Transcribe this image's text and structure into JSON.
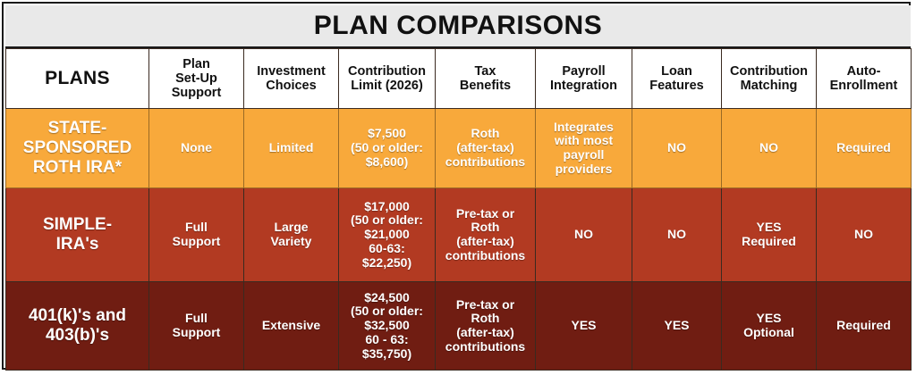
{
  "title": "PLAN COMPARISONS",
  "colors": {
    "row_state": "#f8a93b",
    "row_simple": "#b23a22",
    "row_401k": "#701d12",
    "title_bg": "#e9e9e9",
    "header_bg": "#ffffff"
  },
  "headers": [
    [
      "PLANS"
    ],
    [
      "Plan",
      "Set-Up",
      "Support"
    ],
    [
      "Investment",
      "Choices"
    ],
    [
      "Contribution",
      "Limit (2026)"
    ],
    [
      "Tax",
      "Benefits"
    ],
    [
      "Payroll",
      "Integration"
    ],
    [
      "Loan",
      "Features"
    ],
    [
      "Contribution",
      "Matching"
    ],
    [
      "Auto-",
      "Enrollment"
    ]
  ],
  "rows": [
    {
      "plan": [
        "STATE-",
        "SPONSORED",
        "ROTH IRA*"
      ],
      "setup": [
        "None"
      ],
      "investment": [
        "Limited"
      ],
      "limit": [
        "$7,500",
        "(50 or older:",
        "$8,600)"
      ],
      "tax": [
        "Roth",
        "(after-tax)",
        "contributions"
      ],
      "payroll": [
        "Integrates",
        "with most",
        "payroll",
        "providers"
      ],
      "loan": [
        "NO"
      ],
      "matching": [
        "NO"
      ],
      "auto": [
        "Required"
      ]
    },
    {
      "plan": [
        "SIMPLE-",
        "IRA's"
      ],
      "setup": [
        "Full",
        "Support"
      ],
      "investment": [
        "Large",
        "Variety"
      ],
      "limit": [
        "$17,000",
        "(50 or older:",
        "$21,000",
        "60-63:",
        "$22,250)"
      ],
      "tax": [
        "Pre-tax or",
        "Roth",
        "(after-tax)",
        "contributions"
      ],
      "payroll": [
        "NO"
      ],
      "loan": [
        "NO"
      ],
      "matching": [
        "YES",
        "Required"
      ],
      "auto": [
        "NO"
      ]
    },
    {
      "plan": [
        "401(k)'s and",
        "403(b)'s"
      ],
      "setup": [
        "Full",
        "Support"
      ],
      "investment": [
        "Extensive"
      ],
      "limit": [
        "$24,500",
        "(50 or older:",
        "$32,500",
        "60 - 63:",
        "$35,750)"
      ],
      "tax": [
        "Pre-tax or",
        "Roth",
        "(after-tax)",
        "contributions"
      ],
      "payroll": [
        "YES"
      ],
      "loan": [
        "YES"
      ],
      "matching": [
        "YES",
        "Optional"
      ],
      "auto": [
        "Required"
      ]
    }
  ]
}
